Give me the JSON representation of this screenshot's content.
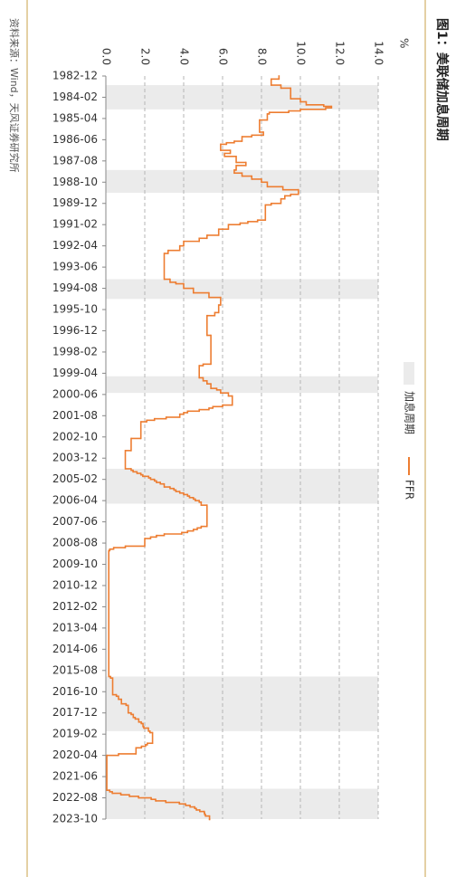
{
  "chart_data": {
    "type": "line",
    "title": "图1：美联储加息周期",
    "unit": "%",
    "source": "资料来源：Wind，天风证券研究所",
    "step": "post",
    "grid": true,
    "xlim": [
      "1982-12",
      "2023-10"
    ],
    "xticks": [
      "1982-12",
      "1984-02",
      "1985-04",
      "1986-06",
      "1987-08",
      "1988-10",
      "1989-12",
      "1991-02",
      "1992-04",
      "1993-06",
      "1994-08",
      "1995-10",
      "1996-12",
      "1998-02",
      "1999-04",
      "2000-06",
      "2001-08",
      "2002-10",
      "2003-12",
      "2005-02",
      "2006-04",
      "2007-06",
      "2008-08",
      "2009-10",
      "2010-12",
      "2012-02",
      "2013-04",
      "2014-06",
      "2015-08",
      "2016-10",
      "2017-12",
      "2019-02",
      "2020-04",
      "2021-06",
      "2022-08",
      "2023-10"
    ],
    "ylim": [
      0,
      14
    ],
    "yticks": [
      {
        "value": 0,
        "label": "0.0"
      },
      {
        "value": 2,
        "label": "2.0"
      },
      {
        "value": 4,
        "label": "4.0"
      },
      {
        "value": 6,
        "label": "6.0"
      },
      {
        "value": 8,
        "label": "8.0"
      },
      {
        "value": 10,
        "label": "10.0"
      },
      {
        "value": 12,
        "label": "12.0"
      },
      {
        "value": 14,
        "label": "14.0"
      }
    ],
    "shaded": {
      "name": "加息周期",
      "color": "#ebebeb",
      "ranges": [
        [
          "1983-06",
          "1984-10"
        ],
        [
          "1988-02",
          "1989-05"
        ],
        [
          "1994-02",
          "1995-03"
        ],
        [
          "1999-06",
          "2000-05"
        ],
        [
          "2004-07",
          "2006-06"
        ],
        [
          "2015-12",
          "2018-12"
        ],
        [
          "2022-02",
          "2023-10"
        ]
      ]
    },
    "series": [
      {
        "name": "FFR",
        "color": "#ed7d31",
        "x": [
          "1982-12",
          "1983-02",
          "1983-06",
          "1983-08",
          "1984-01",
          "1984-03",
          "1984-05",
          "1984-07",
          "1984-08",
          "1984-09",
          "1984-10",
          "1984-11",
          "1984-12",
          "1985-01",
          "1985-05",
          "1986-01",
          "1986-03",
          "1986-04",
          "1986-07",
          "1986-08",
          "1986-09",
          "1987-01",
          "1987-03",
          "1987-05",
          "1987-09",
          "1987-11",
          "1988-02",
          "1988-04",
          "1988-06",
          "1988-08",
          "1988-10",
          "1989-01",
          "1989-03",
          "1989-06",
          "1989-07",
          "1989-09",
          "1989-12",
          "1990-01",
          "1990-11",
          "1990-12",
          "1991-01",
          "1991-02",
          "1991-05",
          "1991-09",
          "1991-11",
          "1992-01",
          "1992-04",
          "1992-07",
          "1992-09",
          "1994-02",
          "1994-04",
          "1994-05",
          "1994-08",
          "1994-11",
          "1995-02",
          "1995-07",
          "1995-12",
          "1996-02",
          "1997-03",
          "1998-10",
          "1998-11",
          "1999-07",
          "1999-09",
          "1999-11",
          "2000-02",
          "2000-03",
          "2000-05",
          "2000-07",
          "2001-01",
          "2001-02",
          "2001-03",
          "2001-04",
          "2001-05",
          "2001-06",
          "2001-07",
          "2001-09",
          "2001-10",
          "2001-11",
          "2001-12",
          "2002-11",
          "2003-07",
          "2004-07",
          "2004-08",
          "2004-09",
          "2004-10",
          "2004-11",
          "2004-12",
          "2005-01",
          "2005-02",
          "2005-03",
          "2005-04",
          "2005-05",
          "2005-07",
          "2005-08",
          "2005-09",
          "2005-10",
          "2005-11",
          "2005-12",
          "2006-01",
          "2006-02",
          "2006-03",
          "2006-04",
          "2006-05",
          "2006-07",
          "2007-09",
          "2007-10",
          "2007-11",
          "2007-12",
          "2008-01",
          "2008-02",
          "2008-03",
          "2008-04",
          "2008-05",
          "2008-10",
          "2008-11",
          "2008-12",
          "2009-01",
          "2015-12",
          "2016-01",
          "2016-12",
          "2017-01",
          "2017-03",
          "2017-06",
          "2017-07",
          "2017-12",
          "2018-01",
          "2018-03",
          "2018-04",
          "2018-06",
          "2018-07",
          "2018-09",
          "2018-10",
          "2018-12",
          "2019-01",
          "2019-08",
          "2019-09",
          "2019-10",
          "2019-11",
          "2020-03",
          "2020-04",
          "2022-03",
          "2022-04",
          "2022-05",
          "2022-06",
          "2022-07",
          "2022-08",
          "2022-09",
          "2022-10",
          "2022-11",
          "2022-12",
          "2023-01",
          "2023-02",
          "2023-03",
          "2023-04",
          "2023-05",
          "2023-06",
          "2023-07",
          "2023-08",
          "2023-10"
        ],
        "values": [
          8.9,
          8.5,
          9.0,
          9.5,
          9.5,
          10.0,
          10.3,
          11.2,
          11.6,
          11.3,
          10.0,
          9.4,
          8.4,
          8.3,
          7.9,
          8.1,
          7.5,
          7.0,
          6.6,
          6.2,
          5.9,
          6.4,
          6.1,
          6.7,
          7.2,
          6.7,
          6.6,
          7.0,
          7.5,
          8.0,
          8.3,
          9.1,
          9.9,
          9.5,
          9.2,
          9.0,
          8.5,
          8.2,
          7.8,
          7.3,
          6.9,
          6.3,
          5.8,
          5.2,
          4.8,
          4.0,
          3.8,
          3.2,
          3.0,
          3.3,
          3.6,
          4.0,
          4.5,
          5.3,
          5.9,
          5.8,
          5.6,
          5.2,
          5.4,
          5.0,
          4.8,
          5.0,
          5.2,
          5.4,
          5.7,
          5.9,
          6.3,
          6.5,
          6.0,
          5.5,
          5.3,
          4.8,
          4.2,
          4.0,
          3.8,
          3.1,
          2.5,
          2.1,
          1.8,
          1.3,
          1.0,
          1.3,
          1.4,
          1.6,
          1.8,
          1.9,
          2.2,
          2.3,
          2.5,
          2.6,
          2.8,
          3.0,
          3.3,
          3.5,
          3.6,
          3.8,
          4.0,
          4.2,
          4.3,
          4.5,
          4.6,
          4.8,
          4.9,
          5.2,
          4.9,
          4.7,
          4.5,
          4.2,
          3.9,
          3.0,
          2.6,
          2.3,
          2.0,
          1.0,
          0.4,
          0.2,
          0.15,
          0.24,
          0.35,
          0.54,
          0.65,
          0.8,
          1.04,
          1.15,
          1.3,
          1.41,
          1.51,
          1.69,
          1.82,
          1.91,
          1.95,
          2.19,
          2.27,
          2.4,
          2.13,
          2.04,
          1.83,
          1.55,
          0.65,
          0.05,
          0.2,
          0.33,
          0.77,
          1.21,
          1.68,
          2.33,
          2.56,
          3.08,
          3.78,
          4.1,
          4.33,
          4.57,
          4.65,
          4.83,
          5.06,
          5.08,
          5.12,
          5.33,
          5.33
        ]
      }
    ]
  }
}
